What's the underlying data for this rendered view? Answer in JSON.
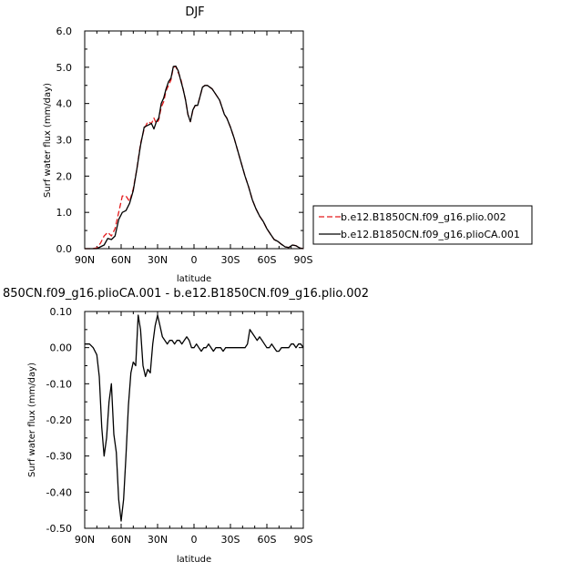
{
  "chart_data": [
    {
      "type": "line",
      "title": "DJF",
      "xlabel": "latitude",
      "ylabel": "Surf water flux (mm/day)",
      "xlim": [
        90,
        -90
      ],
      "ylim": [
        0,
        6
      ],
      "xticks": [
        90,
        60,
        30,
        0,
        -30,
        -60,
        -90
      ],
      "xtick_labels": [
        "90N",
        "60N",
        "30N",
        "0",
        "30S",
        "60S",
        "90S"
      ],
      "yticks": [
        0,
        1,
        2,
        3,
        4,
        5,
        6
      ],
      "ytick_labels": [
        "0.0",
        "1.0",
        "2.0",
        "3.0",
        "4.0",
        "5.0",
        "6.0"
      ],
      "legend_position": "right",
      "series": [
        {
          "name": "b.e12.B1850CN.f09_g16.plio.002",
          "color": "#e41a1c",
          "dash": "dashed",
          "x": [
            90,
            84,
            80,
            77,
            74,
            71,
            68,
            65,
            62,
            59,
            56,
            53,
            50,
            47,
            44,
            41,
            38,
            35,
            33,
            31,
            29,
            27,
            25,
            23,
            21,
            19,
            17,
            15,
            13,
            11,
            9,
            7,
            5,
            3,
            1,
            -1,
            -3,
            -5,
            -7,
            -9,
            -11,
            -13,
            -15,
            -17,
            -19,
            -21,
            -23,
            -25,
            -27,
            -30,
            -33,
            -36,
            -39,
            -42,
            -45,
            -48,
            -51,
            -54,
            -57,
            -60,
            -63,
            -66,
            -69,
            -72,
            -75,
            -78,
            -81,
            -84,
            -87,
            -90
          ],
          "y": [
            0.0,
            0.0,
            0.02,
            0.15,
            0.35,
            0.45,
            0.35,
            0.55,
            1.0,
            1.45,
            1.45,
            1.3,
            1.65,
            2.2,
            2.9,
            3.3,
            3.5,
            3.45,
            3.6,
            3.45,
            3.55,
            3.9,
            4.05,
            4.35,
            4.5,
            4.65,
            5.0,
            5.02,
            4.85,
            4.7,
            4.4,
            4.1,
            3.7,
            3.5,
            3.8,
            3.95,
            3.95,
            4.2,
            4.45,
            4.5,
            4.5,
            4.45,
            4.4,
            4.3,
            4.2,
            4.1,
            3.9,
            3.7,
            3.6,
            3.35,
            3.05,
            2.7,
            2.35,
            2.0,
            1.7,
            1.35,
            1.1,
            0.9,
            0.75,
            0.55,
            0.4,
            0.25,
            0.2,
            0.12,
            0.05,
            0.03,
            0.1,
            0.08,
            0.02,
            0.0
          ]
        },
        {
          "name": "b.e12.B1850CN.f09_g16.plioCA.001",
          "color": "#000000",
          "dash": "solid",
          "x": [
            90,
            84,
            80,
            77,
            74,
            71,
            68,
            65,
            62,
            59,
            56,
            53,
            50,
            47,
            44,
            41,
            38,
            35,
            33,
            31,
            29,
            27,
            25,
            23,
            21,
            19,
            17,
            15,
            13,
            11,
            9,
            7,
            5,
            3,
            1,
            -1,
            -3,
            -5,
            -7,
            -9,
            -11,
            -13,
            -15,
            -17,
            -19,
            -21,
            -23,
            -25,
            -27,
            -30,
            -33,
            -36,
            -39,
            -42,
            -45,
            -48,
            -51,
            -54,
            -57,
            -60,
            -63,
            -66,
            -69,
            -72,
            -75,
            -78,
            -81,
            -84,
            -87,
            -90
          ],
          "y": [
            0.0,
            0.0,
            0.0,
            0.05,
            0.1,
            0.28,
            0.25,
            0.35,
            0.8,
            1.0,
            1.05,
            1.25,
            1.6,
            2.2,
            2.85,
            3.35,
            3.4,
            3.45,
            3.3,
            3.5,
            3.6,
            4.0,
            4.15,
            4.4,
            4.6,
            4.7,
            5.02,
            5.03,
            4.9,
            4.65,
            4.4,
            4.1,
            3.7,
            3.5,
            3.82,
            3.95,
            3.95,
            4.2,
            4.45,
            4.5,
            4.5,
            4.45,
            4.4,
            4.3,
            4.2,
            4.1,
            3.9,
            3.7,
            3.6,
            3.35,
            3.05,
            2.7,
            2.35,
            2.0,
            1.7,
            1.35,
            1.1,
            0.9,
            0.75,
            0.55,
            0.4,
            0.25,
            0.2,
            0.12,
            0.05,
            0.03,
            0.1,
            0.08,
            0.02,
            0.0
          ]
        }
      ]
    },
    {
      "type": "line",
      "title": "850CN.f09_g16.plioCA.001 - b.e12.B1850CN.f09_g16.plio.002",
      "xlabel": "latitude",
      "ylabel": "Surf water flux (mm/day)",
      "xlim": [
        90,
        -90
      ],
      "ylim": [
        -0.5,
        0.1
      ],
      "xticks": [
        90,
        60,
        30,
        0,
        -30,
        -60,
        -90
      ],
      "xtick_labels": [
        "90N",
        "60N",
        "30N",
        "0",
        "30S",
        "60S",
        "90S"
      ],
      "yticks": [
        0.1,
        0,
        -0.1,
        -0.2,
        -0.3,
        -0.4,
        -0.5
      ],
      "ytick_labels": [
        "0.10",
        "0.00",
        "-0.10",
        "-0.20",
        "-0.30",
        "-0.40",
        "-0.50"
      ],
      "series": [
        {
          "color": "#000000",
          "dash": "solid",
          "x": [
            90,
            86,
            83,
            80,
            78,
            76,
            74,
            72,
            70,
            68,
            66,
            64,
            62,
            60,
            58,
            56,
            54,
            52,
            50,
            48,
            46,
            44,
            42,
            40,
            38,
            36,
            34,
            32,
            30,
            28,
            26,
            24,
            22,
            20,
            18,
            16,
            14,
            12,
            10,
            8,
            6,
            4,
            2,
            0,
            -2,
            -4,
            -6,
            -8,
            -10,
            -12,
            -14,
            -16,
            -18,
            -20,
            -22,
            -24,
            -26,
            -28,
            -30,
            -32,
            -34,
            -36,
            -38,
            -40,
            -42,
            -44,
            -46,
            -48,
            -50,
            -52,
            -54,
            -56,
            -58,
            -60,
            -62,
            -64,
            -66,
            -68,
            -70,
            -72,
            -74,
            -76,
            -78,
            -80,
            -82,
            -84,
            -86,
            -88,
            -90
          ],
          "y": [
            0.01,
            0.01,
            0.0,
            -0.02,
            -0.08,
            -0.22,
            -0.3,
            -0.25,
            -0.15,
            -0.1,
            -0.24,
            -0.29,
            -0.42,
            -0.48,
            -0.42,
            -0.3,
            -0.16,
            -0.07,
            -0.04,
            -0.05,
            0.09,
            0.05,
            -0.05,
            -0.08,
            -0.06,
            -0.07,
            0.01,
            0.06,
            0.09,
            0.06,
            0.03,
            0.02,
            0.01,
            0.02,
            0.02,
            0.01,
            0.02,
            0.02,
            0.01,
            0.02,
            0.03,
            0.02,
            0.0,
            0.0,
            0.01,
            0.0,
            -0.01,
            0.0,
            0.0,
            0.01,
            0.0,
            -0.01,
            0.0,
            0.0,
            0.0,
            -0.01,
            0.0,
            0.0,
            0.0,
            0.0,
            0.0,
            0.0,
            0.0,
            0.0,
            0.0,
            0.01,
            0.05,
            0.04,
            0.03,
            0.02,
            0.03,
            0.02,
            0.01,
            0.0,
            0.0,
            0.01,
            0.0,
            -0.01,
            -0.01,
            0.0,
            0.0,
            0.0,
            0.0,
            0.01,
            0.01,
            0.0,
            0.01,
            0.01,
            0.0
          ]
        }
      ]
    }
  ]
}
